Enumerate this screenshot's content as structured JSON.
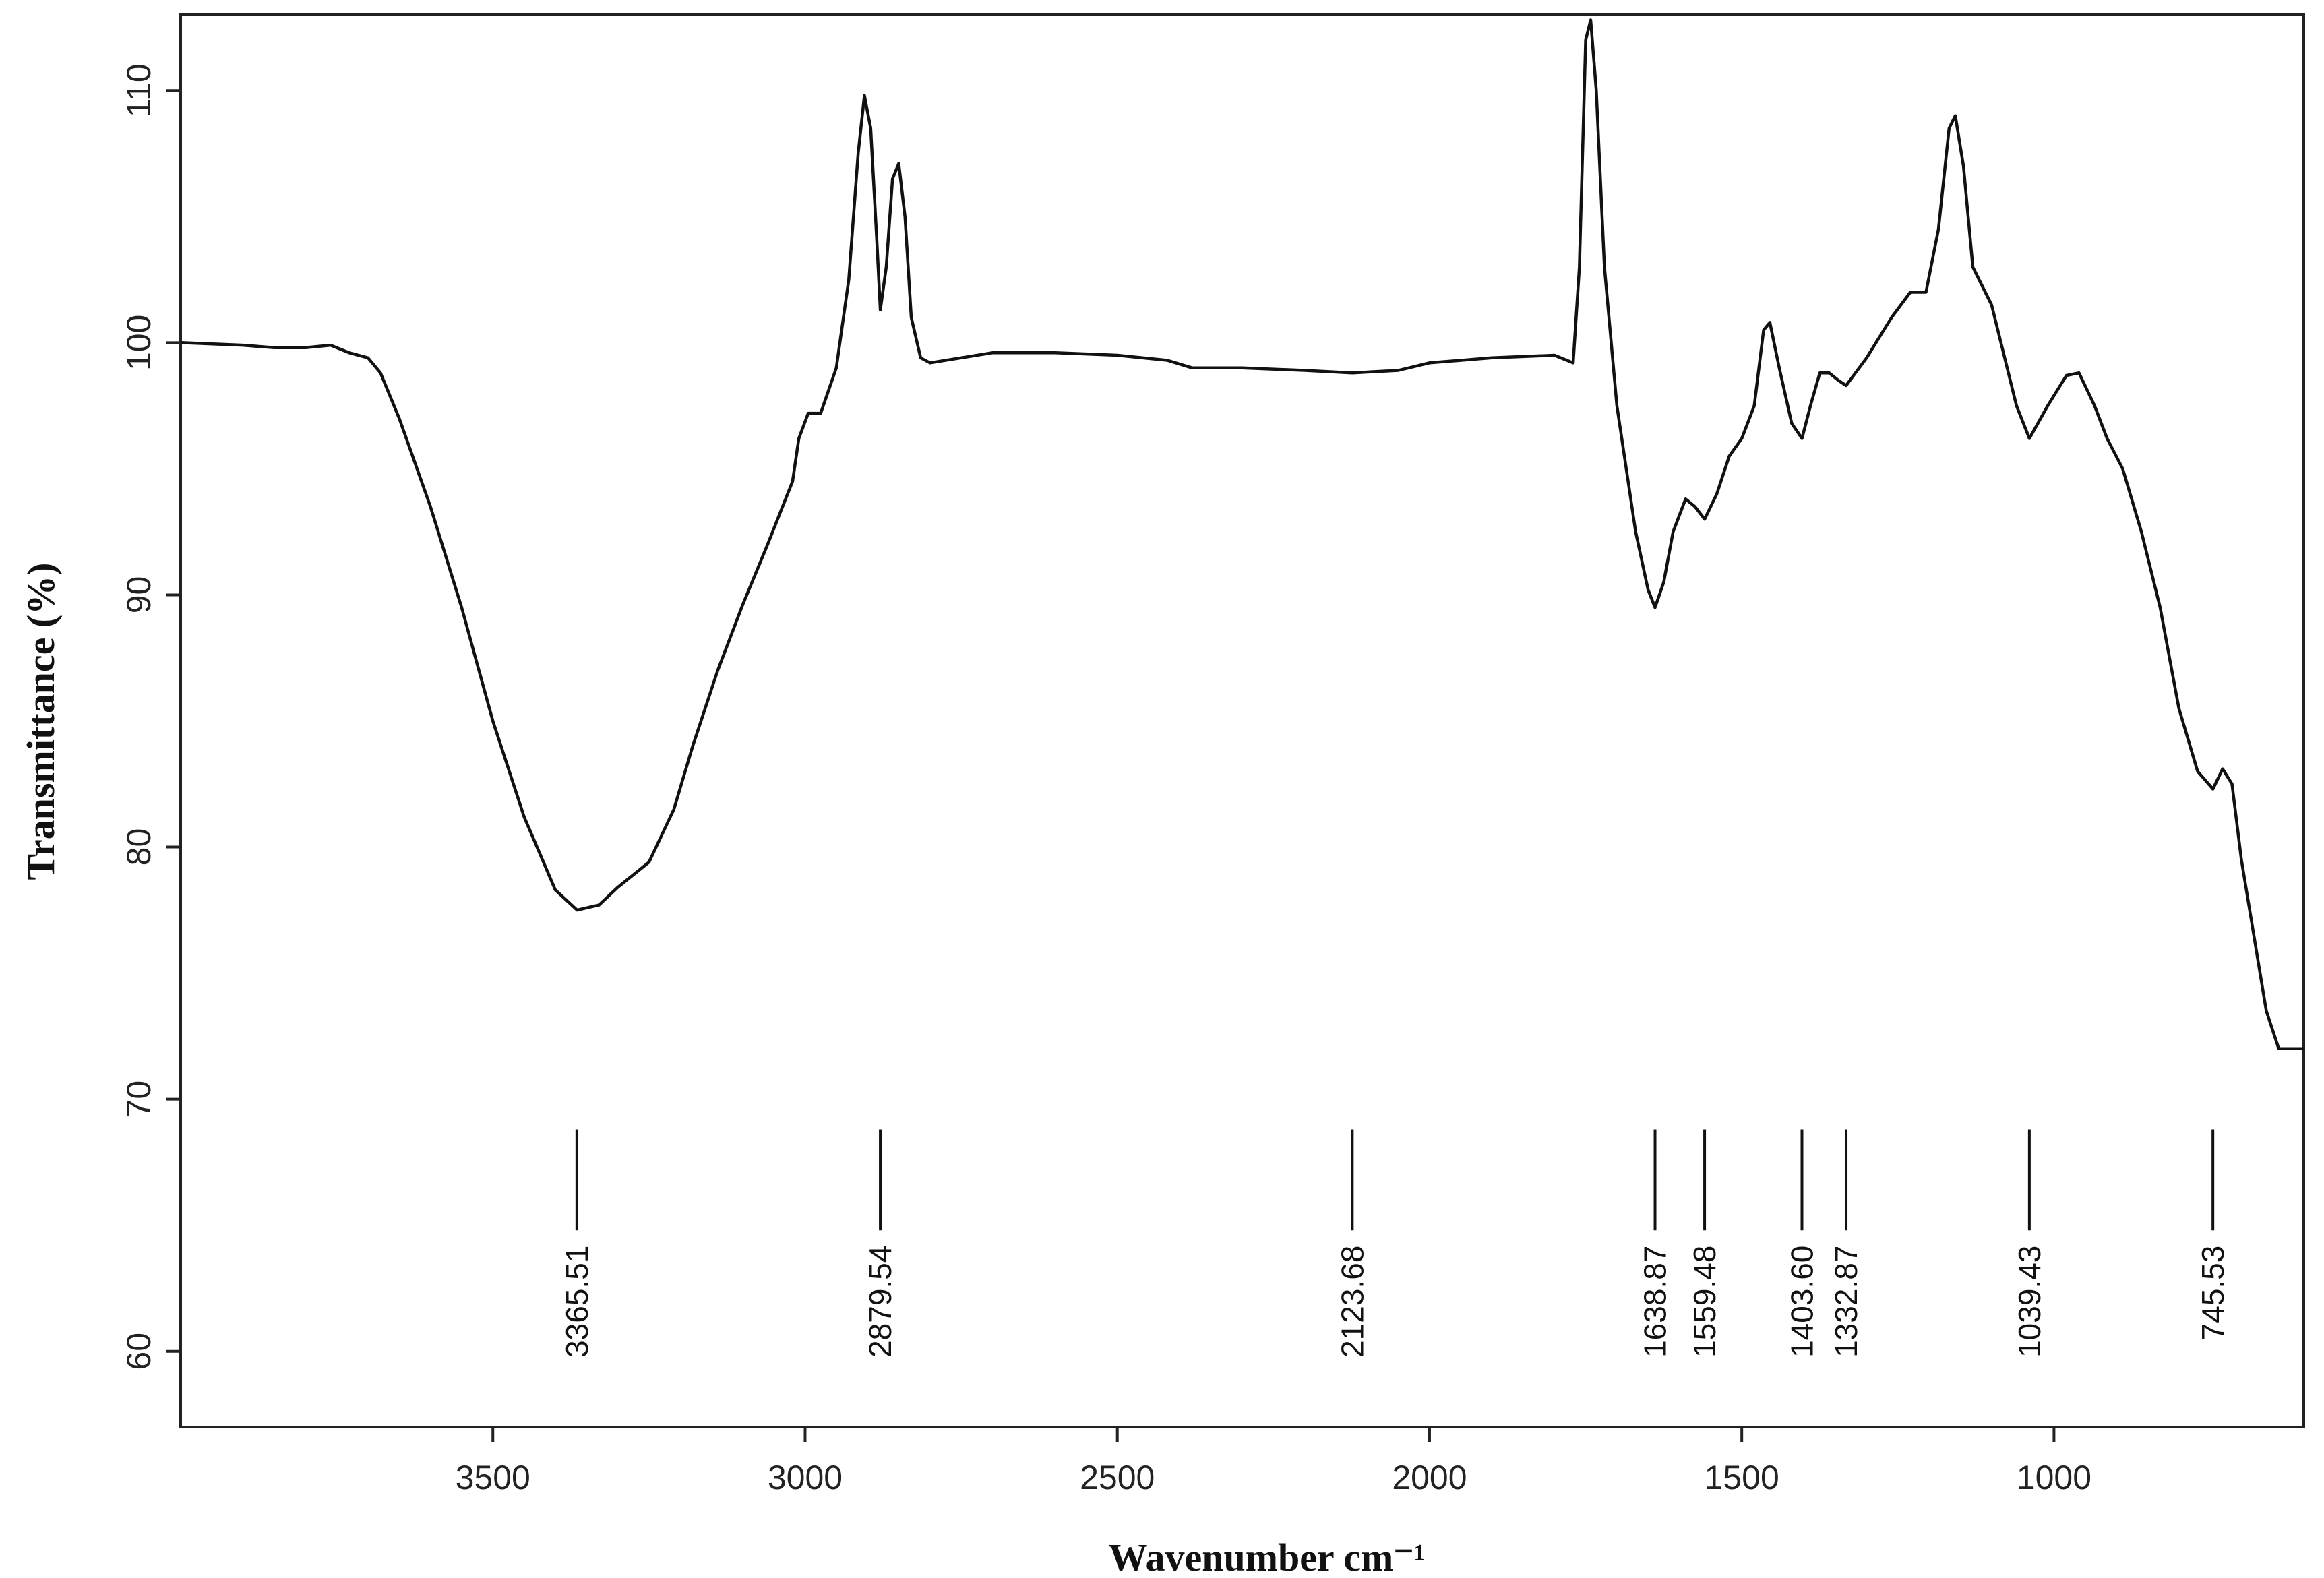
{
  "chart_data": {
    "type": "line",
    "title": "",
    "xlabel": "Wavenumber cm⁻¹",
    "ylabel": "Transmittance (%)",
    "xlim": [
      4000,
      600
    ],
    "ylim": [
      57,
      113
    ],
    "x_reversed": true,
    "grid": false,
    "x_ticks": [
      3500,
      3000,
      2500,
      2000,
      1500,
      1000
    ],
    "y_ticks": [
      60,
      70,
      80,
      90,
      100,
      110
    ],
    "series": [
      {
        "values": [
          [
            4000,
            100.0
          ],
          [
            3900,
            99.9
          ],
          [
            3850,
            99.8
          ],
          [
            3800,
            99.8
          ],
          [
            3760,
            99.9
          ],
          [
            3730,
            99.6
          ],
          [
            3700,
            99.4
          ],
          [
            3680,
            98.8
          ],
          [
            3650,
            97.0
          ],
          [
            3600,
            93.5
          ],
          [
            3550,
            89.5
          ],
          [
            3500,
            85.0
          ],
          [
            3450,
            81.2
          ],
          [
            3400,
            78.3
          ],
          [
            3365,
            77.5
          ],
          [
            3330,
            77.7
          ],
          [
            3300,
            78.4
          ],
          [
            3250,
            79.4
          ],
          [
            3210,
            81.5
          ],
          [
            3180,
            84.0
          ],
          [
            3140,
            87.0
          ],
          [
            3100,
            89.6
          ],
          [
            3060,
            92.0
          ],
          [
            3020,
            94.5
          ],
          [
            3010,
            96.2
          ],
          [
            2995,
            97.2
          ],
          [
            2975,
            97.2
          ],
          [
            2950,
            99.0
          ],
          [
            2930,
            102.5
          ],
          [
            2915,
            107.5
          ],
          [
            2905,
            109.8
          ],
          [
            2895,
            108.5
          ],
          [
            2885,
            104.0
          ],
          [
            2879.54,
            101.3
          ],
          [
            2870,
            103.0
          ],
          [
            2860,
            106.5
          ],
          [
            2850,
            107.1
          ],
          [
            2840,
            105.0
          ],
          [
            2830,
            101.0
          ],
          [
            2815,
            99.4
          ],
          [
            2800,
            99.2
          ],
          [
            2750,
            99.4
          ],
          [
            2700,
            99.6
          ],
          [
            2600,
            99.6
          ],
          [
            2500,
            99.5
          ],
          [
            2420,
            99.3
          ],
          [
            2380,
            99.0
          ],
          [
            2300,
            99.0
          ],
          [
            2200,
            98.9
          ],
          [
            2123.68,
            98.8
          ],
          [
            2050,
            98.9
          ],
          [
            2000,
            99.2
          ],
          [
            1900,
            99.4
          ],
          [
            1800,
            99.5
          ],
          [
            1770,
            99.2
          ],
          [
            1760,
            103.0
          ],
          [
            1750,
            112.0
          ],
          [
            1742,
            112.8
          ],
          [
            1733,
            110.0
          ],
          [
            1720,
            103.0
          ],
          [
            1700,
            97.5
          ],
          [
            1670,
            92.5
          ],
          [
            1650,
            90.2
          ],
          [
            1638.87,
            89.5
          ],
          [
            1625,
            90.5
          ],
          [
            1610,
            92.5
          ],
          [
            1590,
            93.8
          ],
          [
            1575,
            93.5
          ],
          [
            1559.48,
            93.0
          ],
          [
            1540,
            94.0
          ],
          [
            1520,
            95.5
          ],
          [
            1500,
            96.2
          ],
          [
            1480,
            97.5
          ],
          [
            1465,
            100.5
          ],
          [
            1455,
            100.8
          ],
          [
            1440,
            99.0
          ],
          [
            1420,
            96.8
          ],
          [
            1403.6,
            96.2
          ],
          [
            1390,
            97.5
          ],
          [
            1375,
            98.8
          ],
          [
            1360,
            98.8
          ],
          [
            1345,
            98.5
          ],
          [
            1332.87,
            98.3
          ],
          [
            1300,
            99.4
          ],
          [
            1260,
            101.0
          ],
          [
            1230,
            102.0
          ],
          [
            1205,
            102.0
          ],
          [
            1185,
            104.5
          ],
          [
            1168,
            108.5
          ],
          [
            1158,
            109.0
          ],
          [
            1145,
            107.0
          ],
          [
            1130,
            103.0
          ],
          [
            1100,
            101.5
          ],
          [
            1080,
            99.5
          ],
          [
            1060,
            97.5
          ],
          [
            1039.43,
            96.2
          ],
          [
            1010,
            97.5
          ],
          [
            980,
            98.7
          ],
          [
            960,
            98.8
          ],
          [
            935,
            97.5
          ],
          [
            915,
            96.2
          ],
          [
            890,
            95.0
          ],
          [
            860,
            92.5
          ],
          [
            830,
            89.5
          ],
          [
            800,
            85.5
          ],
          [
            770,
            83.0
          ],
          [
            745.53,
            82.3
          ],
          [
            730,
            83.1
          ],
          [
            715,
            82.5
          ],
          [
            700,
            79.5
          ],
          [
            680,
            76.5
          ],
          [
            660,
            73.5
          ],
          [
            640,
            72.0
          ],
          [
            620,
            72.0
          ],
          [
            600,
            72.0
          ]
        ]
      }
    ],
    "peaks": [
      {
        "x": 3365.51,
        "label": "3365.51"
      },
      {
        "x": 2879.54,
        "label": "2879.54"
      },
      {
        "x": 2123.68,
        "label": "2123.68"
      },
      {
        "x": 1638.87,
        "label": "1638.87"
      },
      {
        "x": 1559.48,
        "label": "1559.48"
      },
      {
        "x": 1403.6,
        "label": "1403.60"
      },
      {
        "x": 1332.87,
        "label": "1332.87"
      },
      {
        "x": 1039.43,
        "label": "1039.43"
      },
      {
        "x": 745.53,
        "label": "745.53"
      }
    ],
    "colors": {
      "line": "#111111",
      "axis": "#222222"
    }
  }
}
